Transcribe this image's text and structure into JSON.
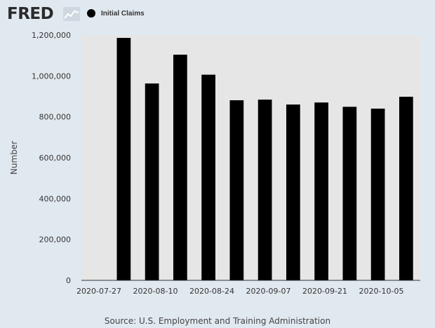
{
  "header": {
    "logo_text": "FRED",
    "logo_icon": "line-chart-icon",
    "legend_label": "Initial Claims"
  },
  "colors": {
    "background": "#e1e9f0",
    "plot_background": "#e6e6e6",
    "bar": "#000000"
  },
  "chart_data": {
    "type": "bar",
    "title": "",
    "xlabel": "",
    "ylabel": "Number",
    "series": [
      {
        "name": "Initial Claims",
        "color": "#000000",
        "x": [
          "2020-07-27",
          "2020-08-03",
          "2020-08-10",
          "2020-08-17",
          "2020-08-24",
          "2020-08-31",
          "2020-09-07",
          "2020-09-14",
          "2020-09-21",
          "2020-09-28",
          "2020-10-05",
          "2020-10-12"
        ],
        "values": [
          null,
          1186000,
          963000,
          1104000,
          1006000,
          881000,
          884000,
          860000,
          870000,
          849000,
          840000,
          898000
        ]
      }
    ],
    "x_ticks": [
      "2020-07-27",
      "2020-08-10",
      "2020-08-24",
      "2020-09-07",
      "2020-09-21",
      "2020-10-05"
    ],
    "y_ticks": [
      "0",
      "200,000",
      "400,000",
      "600,000",
      "800,000",
      "1,000,000",
      "1,200,000"
    ],
    "y_tick_values": [
      0,
      200000,
      400000,
      600000,
      800000,
      1000000,
      1200000
    ],
    "ylim": [
      0,
      1200000
    ],
    "grid": false,
    "legend_position": "top-left"
  },
  "footer": {
    "source": "Source: U.S. Employment and Training Administration"
  }
}
